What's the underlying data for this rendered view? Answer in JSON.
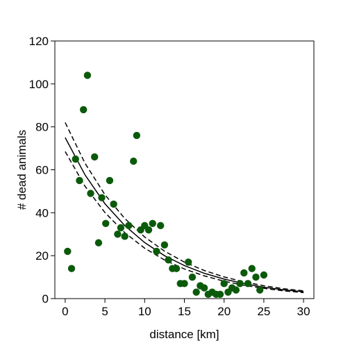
{
  "chart_data": {
    "type": "scatter",
    "title": "",
    "xlabel": "distance [km]",
    "ylabel": "# dead animals",
    "xlim": [
      -1.3,
      31.3
    ],
    "ylim": [
      0,
      120
    ],
    "xticks": [
      0,
      5,
      10,
      15,
      20,
      25,
      30
    ],
    "yticks": [
      0,
      20,
      40,
      60,
      80,
      100,
      120
    ],
    "grid": false,
    "point_color": "#0b5a0b",
    "series": [
      {
        "type": "scatter",
        "x": [
          0.3,
          0.8,
          1.3,
          1.8,
          2.3,
          2.8,
          3.2,
          3.7,
          4.2,
          4.6,
          5.1,
          5.6,
          6.1,
          6.6,
          7.0,
          7.5,
          8.0,
          8.6,
          9.0,
          9.5,
          10.0,
          10.5,
          11.0,
          11.5,
          12.0,
          12.5,
          13.0,
          13.5,
          14.0,
          14.5,
          15.0,
          15.5,
          16.0,
          16.5,
          17.0,
          17.5,
          18.0,
          18.5,
          19.0,
          19.5,
          20.0,
          20.5,
          21.0,
          21.5,
          22.0,
          22.5,
          23.0,
          23.5,
          24.0,
          24.5,
          25.0
        ],
        "y": [
          22,
          14,
          65,
          55,
          88,
          104,
          49,
          66,
          26,
          47,
          35,
          55,
          44,
          30,
          33,
          29,
          34,
          64,
          76,
          32,
          34,
          32,
          35,
          22,
          34,
          25,
          18,
          14,
          14,
          7,
          7,
          17,
          10,
          3,
          6,
          5,
          2,
          3,
          2,
          2,
          7,
          3,
          5,
          4,
          7,
          12,
          7,
          14,
          10,
          4,
          11
        ]
      },
      {
        "type": "line",
        "style": "solid",
        "x": [
          0,
          2.5,
          5,
          7.5,
          10,
          12.5,
          15,
          17.5,
          20,
          22.5,
          25,
          27.5,
          30
        ],
        "y": [
          75,
          57.6,
          44.2,
          34,
          26.1,
          20,
          15.4,
          11.8,
          9.1,
          7,
          5.3,
          4.1,
          3.2
        ]
      },
      {
        "type": "line",
        "style": "dashed",
        "x": [
          0,
          2.5,
          5,
          7.5,
          10,
          12.5,
          15,
          17.5,
          20,
          22.5,
          25,
          27.5,
          30
        ],
        "y": [
          82,
          63,
          48.4,
          37.3,
          28.7,
          22.1,
          17,
          13.1,
          10.1,
          7.8,
          6,
          4.6,
          3.6
        ]
      },
      {
        "type": "line",
        "style": "dashed",
        "x": [
          0,
          2.5,
          5,
          7.5,
          10,
          12.5,
          15,
          17.5,
          20,
          22.5,
          25,
          27.5,
          30
        ],
        "y": [
          68.5,
          52.3,
          40.1,
          30.7,
          23.5,
          18,
          13.8,
          10.6,
          8.1,
          6.2,
          4.8,
          3.6,
          2.8
        ]
      }
    ]
  }
}
